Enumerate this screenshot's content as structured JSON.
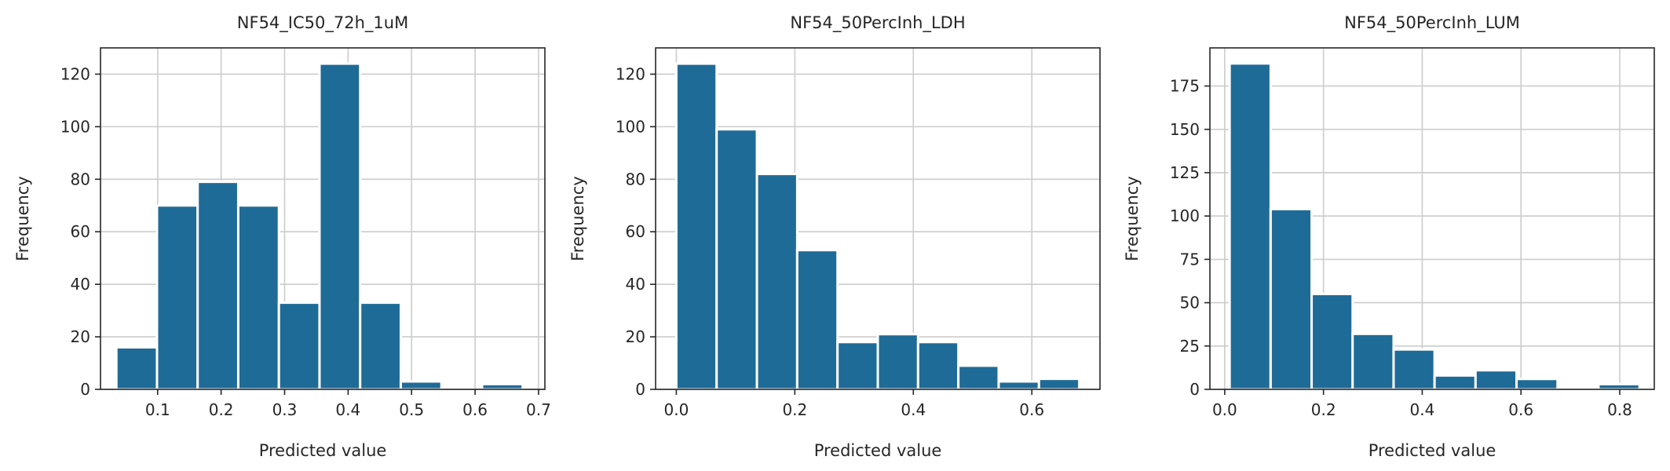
{
  "colors": {
    "bar": "#1f6b98",
    "grid": "#cccccc",
    "axis": "#262626",
    "background": "#ffffff"
  },
  "chart_data": [
    {
      "type": "bar",
      "title": "NF54_IC50_72h_1uM",
      "xlabel": "Predicted value",
      "ylabel": "Frequency",
      "xlim": [
        0.01,
        0.71
      ],
      "ylim": [
        0,
        130
      ],
      "xticks": [
        0.1,
        0.2,
        0.3,
        0.4,
        0.5,
        0.6,
        0.7
      ],
      "xtick_labels": [
        "0.1",
        "0.2",
        "0.3",
        "0.4",
        "0.5",
        "0.6",
        "0.7"
      ],
      "yticks": [
        0,
        20,
        40,
        60,
        80,
        100,
        120
      ],
      "ytick_labels": [
        "0",
        "20",
        "40",
        "60",
        "80",
        "100",
        "120"
      ],
      "bin_edges": [
        0.035,
        0.099,
        0.163,
        0.227,
        0.291,
        0.355,
        0.419,
        0.483,
        0.547,
        0.611,
        0.675
      ],
      "values": [
        16,
        70,
        79,
        70,
        33,
        124,
        33,
        3,
        0,
        2
      ],
      "grid": true
    },
    {
      "type": "bar",
      "title": "NF54_50PercInh_LDH",
      "xlabel": "Predicted value",
      "ylabel": "Frequency",
      "xlim": [
        -0.035,
        0.715
      ],
      "ylim": [
        0,
        130
      ],
      "xticks": [
        0.0,
        0.2,
        0.4,
        0.6
      ],
      "xtick_labels": [
        "0.0",
        "0.2",
        "0.4",
        "0.6"
      ],
      "yticks": [
        0,
        20,
        40,
        60,
        80,
        100,
        120
      ],
      "ytick_labels": [
        "0",
        "20",
        "40",
        "60",
        "80",
        "100",
        "120"
      ],
      "bin_edges": [
        0.0,
        0.068,
        0.136,
        0.204,
        0.272,
        0.34,
        0.408,
        0.476,
        0.544,
        0.612,
        0.68
      ],
      "values": [
        124,
        99,
        82,
        53,
        18,
        21,
        18,
        9,
        3,
        4
      ],
      "grid": true
    },
    {
      "type": "bar",
      "title": "NF54_50PercInh_LUM",
      "xlabel": "Predicted value",
      "ylabel": "Frequency",
      "xlim": [
        -0.03,
        0.87
      ],
      "ylim": [
        0,
        197
      ],
      "xticks": [
        0.0,
        0.2,
        0.4,
        0.6,
        0.8
      ],
      "xtick_labels": [
        "0.0",
        "0.2",
        "0.4",
        "0.6",
        "0.8"
      ],
      "yticks": [
        0,
        25,
        50,
        75,
        100,
        125,
        150,
        175
      ],
      "ytick_labels": [
        "0",
        "25",
        "50",
        "75",
        "100",
        "125",
        "150",
        "175"
      ],
      "bin_edges": [
        0.01,
        0.093,
        0.176,
        0.259,
        0.342,
        0.425,
        0.508,
        0.591,
        0.674,
        0.757,
        0.84
      ],
      "values": [
        188,
        104,
        55,
        32,
        23,
        8,
        11,
        6,
        0,
        3
      ],
      "grid": true
    }
  ]
}
